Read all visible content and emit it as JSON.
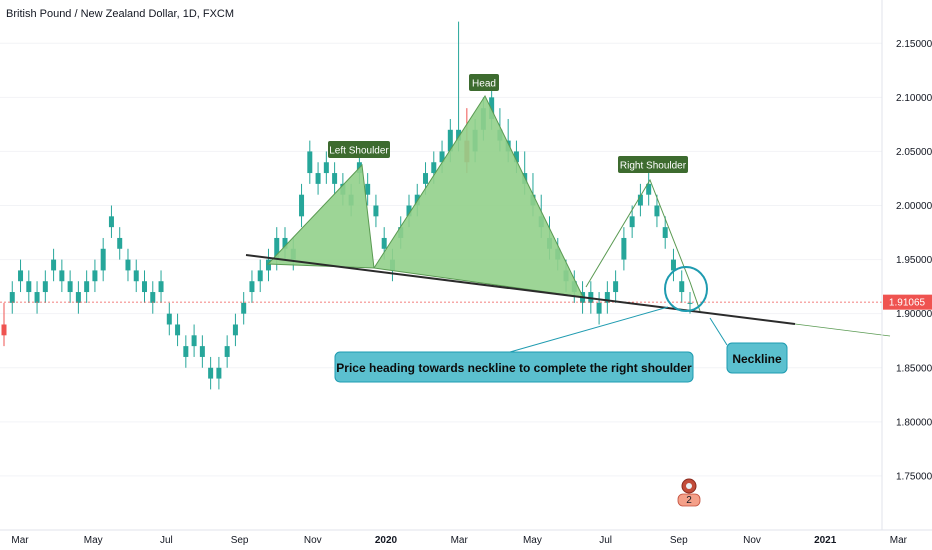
{
  "chart_data": {
    "type": "candlestick",
    "title": "British Pound / New Zealand Dollar, 1D, FXCM",
    "x_ticks": [
      "Mar",
      "May",
      "Jul",
      "Sep",
      "Nov",
      "2020",
      "Mar",
      "May",
      "Jul",
      "Sep",
      "Nov",
      "2021",
      "Mar"
    ],
    "y_ticks": [
      "2.15000",
      "2.10000",
      "2.05000",
      "2.00000",
      "1.95000",
      "1.90000",
      "1.85000",
      "1.80000",
      "1.75000"
    ],
    "ylim": [
      1.7,
      2.19
    ],
    "last_price": "1.91065",
    "series": [
      {
        "name": "",
        "points": [
          [
            1.89,
            1.91,
            1.87,
            1.88
          ],
          [
            1.91,
            1.93,
            1.9,
            1.92
          ],
          [
            1.93,
            1.95,
            1.92,
            1.94
          ],
          [
            1.92,
            1.94,
            1.91,
            1.93
          ],
          [
            1.91,
            1.93,
            1.9,
            1.92
          ],
          [
            1.92,
            1.94,
            1.91,
            1.93
          ],
          [
            1.94,
            1.96,
            1.93,
            1.95
          ],
          [
            1.93,
            1.95,
            1.92,
            1.94
          ],
          [
            1.92,
            1.94,
            1.91,
            1.93
          ],
          [
            1.91,
            1.93,
            1.9,
            1.92
          ],
          [
            1.92,
            1.94,
            1.91,
            1.93
          ],
          [
            1.93,
            1.95,
            1.92,
            1.94
          ],
          [
            1.94,
            1.97,
            1.93,
            1.96
          ],
          [
            1.98,
            2.0,
            1.97,
            1.99
          ],
          [
            1.96,
            1.98,
            1.95,
            1.97
          ],
          [
            1.94,
            1.96,
            1.93,
            1.95
          ],
          [
            1.93,
            1.95,
            1.92,
            1.94
          ],
          [
            1.92,
            1.94,
            1.91,
            1.93
          ],
          [
            1.91,
            1.93,
            1.9,
            1.92
          ],
          [
            1.92,
            1.94,
            1.91,
            1.93
          ],
          [
            1.89,
            1.91,
            1.88,
            1.9
          ],
          [
            1.88,
            1.9,
            1.87,
            1.89
          ],
          [
            1.86,
            1.88,
            1.85,
            1.87
          ],
          [
            1.87,
            1.89,
            1.86,
            1.88
          ],
          [
            1.86,
            1.88,
            1.85,
            1.87
          ],
          [
            1.84,
            1.86,
            1.83,
            1.85
          ],
          [
            1.84,
            1.86,
            1.83,
            1.85
          ],
          [
            1.86,
            1.88,
            1.85,
            1.87
          ],
          [
            1.88,
            1.9,
            1.87,
            1.89
          ],
          [
            1.9,
            1.92,
            1.89,
            1.91
          ],
          [
            1.92,
            1.94,
            1.91,
            1.93
          ],
          [
            1.93,
            1.95,
            1.92,
            1.94
          ],
          [
            1.94,
            1.96,
            1.93,
            1.95
          ],
          [
            1.95,
            1.98,
            1.94,
            1.97
          ],
          [
            1.96,
            1.98,
            1.95,
            1.97
          ],
          [
            1.95,
            1.97,
            1.94,
            1.96
          ],
          [
            1.99,
            2.02,
            1.98,
            2.01
          ],
          [
            2.03,
            2.06,
            2.02,
            2.05
          ],
          [
            2.02,
            2.04,
            2.01,
            2.03
          ],
          [
            2.03,
            2.05,
            2.02,
            2.04
          ],
          [
            2.02,
            2.04,
            2.01,
            2.03
          ],
          [
            2.01,
            2.03,
            2.0,
            2.02
          ],
          [
            2.0,
            2.02,
            1.99,
            2.01
          ],
          [
            2.03,
            2.05,
            2.02,
            2.04
          ],
          [
            2.01,
            2.03,
            2.0,
            2.02
          ],
          [
            1.99,
            2.01,
            1.98,
            2.0
          ],
          [
            1.96,
            1.98,
            1.95,
            1.97
          ],
          [
            1.94,
            1.96,
            1.93,
            1.95
          ],
          [
            1.97,
            1.99,
            1.96,
            1.98
          ],
          [
            1.99,
            2.01,
            1.98,
            2.0
          ],
          [
            2.0,
            2.02,
            1.99,
            2.01
          ],
          [
            2.02,
            2.04,
            2.01,
            2.03
          ],
          [
            2.03,
            2.05,
            2.02,
            2.04
          ],
          [
            2.04,
            2.06,
            2.03,
            2.05
          ],
          [
            2.05,
            2.08,
            2.04,
            2.07
          ],
          [
            2.06,
            2.17,
            2.05,
            2.07
          ],
          [
            2.06,
            2.09,
            2.03,
            2.04
          ],
          [
            2.05,
            2.08,
            2.04,
            2.07
          ],
          [
            2.07,
            2.1,
            2.06,
            2.09
          ],
          [
            2.08,
            2.11,
            2.07,
            2.1
          ],
          [
            2.06,
            2.09,
            2.05,
            2.07
          ],
          [
            2.05,
            2.08,
            2.04,
            2.06
          ],
          [
            2.04,
            2.06,
            2.03,
            2.05
          ],
          [
            2.02,
            2.05,
            2.01,
            2.03
          ],
          [
            2.0,
            2.03,
            1.99,
            2.01
          ],
          [
            1.98,
            2.01,
            1.97,
            1.99
          ],
          [
            1.96,
            1.99,
            1.95,
            1.97
          ],
          [
            1.95,
            1.97,
            1.94,
            1.96
          ],
          [
            1.93,
            1.95,
            1.92,
            1.94
          ],
          [
            1.92,
            1.94,
            1.91,
            1.93
          ],
          [
            1.91,
            1.93,
            1.9,
            1.92
          ],
          [
            1.91,
            1.93,
            1.9,
            1.92
          ],
          [
            1.9,
            1.92,
            1.89,
            1.91
          ],
          [
            1.91,
            1.93,
            1.9,
            1.92
          ],
          [
            1.92,
            1.94,
            1.91,
            1.93
          ],
          [
            1.95,
            1.98,
            1.94,
            1.97
          ],
          [
            1.98,
            2.0,
            1.97,
            1.99
          ],
          [
            2.0,
            2.02,
            1.99,
            2.01
          ],
          [
            2.01,
            2.03,
            2.0,
            2.02
          ],
          [
            1.99,
            2.01,
            1.98,
            2.0
          ],
          [
            1.97,
            1.99,
            1.96,
            1.98
          ],
          [
            1.94,
            1.96,
            1.93,
            1.95
          ],
          [
            1.92,
            1.94,
            1.91,
            1.93
          ],
          [
            1.91,
            1.92,
            1.9,
            1.91
          ]
        ]
      }
    ],
    "annotations": [
      {
        "label": "Left Shoulder"
      },
      {
        "label": "Head"
      },
      {
        "label": "Right Shoulder"
      },
      {
        "label": "Price heading towards neckline to complete the right shoulder"
      },
      {
        "label": "Neckline"
      }
    ],
    "badge_count": "2",
    "colors": {
      "up": "#26a69a",
      "down": "#ef5350",
      "pattern_fill": "#92d08b",
      "pattern_stroke": "#5a9a52",
      "label_bg": "#3d6b2f",
      "callout_bg": "#5bc0cf",
      "callout_stroke": "#1e9bb0",
      "neckline": "#2b2b2b",
      "last_price_line": "#ef5350"
    }
  }
}
